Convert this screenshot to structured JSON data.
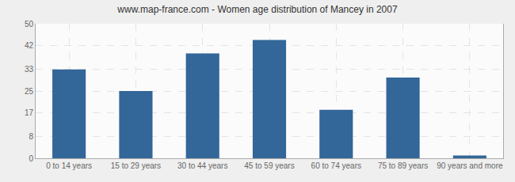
{
  "chart_data": {
    "type": "bar",
    "title": "www.map-france.com - Women age distribution of Mancey in 2007",
    "categories": [
      "0 to 14 years",
      "15 to 29 years",
      "30 to 44 years",
      "45 to 59 years",
      "60 to 74 years",
      "75 to 89 years",
      "90 years and more"
    ],
    "values": [
      33,
      25,
      39,
      44,
      18,
      30,
      1
    ],
    "color": "#336699",
    "ylim": [
      0,
      50
    ],
    "yticks": [
      0,
      8,
      17,
      25,
      33,
      42,
      50
    ],
    "grid": true
  }
}
